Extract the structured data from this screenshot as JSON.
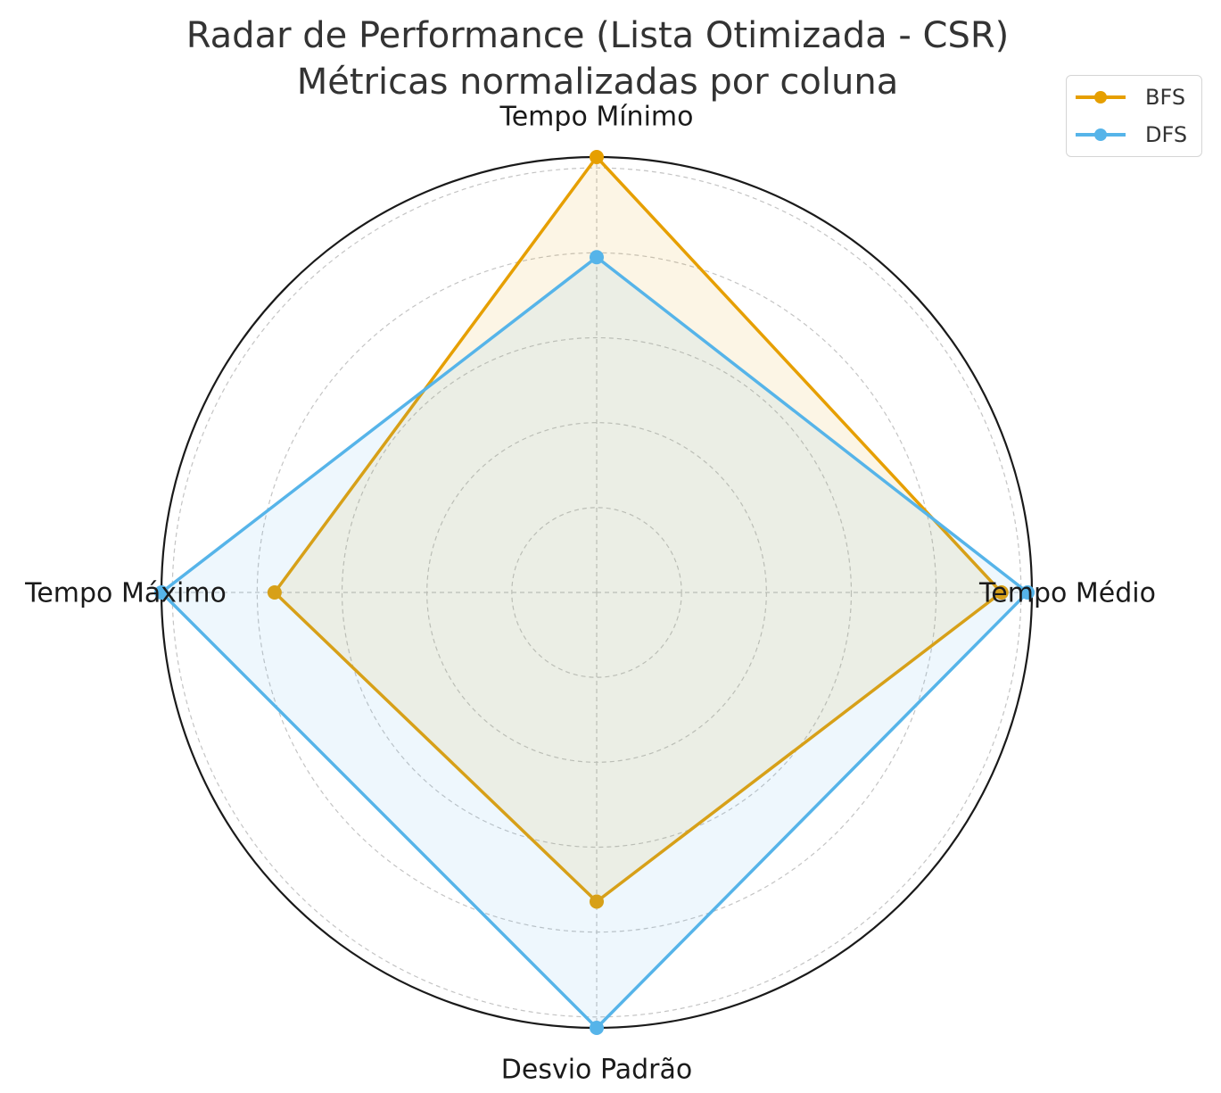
{
  "chart_data": {
    "type": "radar",
    "title": "Radar de Performance (Lista Otimizada - CSR)",
    "subtitle": "Métricas normalizadas por coluna",
    "axes": [
      "Tempo Mínimo",
      "Tempo Médio",
      "Desvio Padrão",
      "Tempo Máximo"
    ],
    "rlim": [
      0,
      1
    ],
    "grid": true,
    "legend_position": "top-right",
    "series": [
      {
        "name": "BFS",
        "color": "#E69F00",
        "values": [
          1.0,
          0.93,
          0.71,
          0.74
        ]
      },
      {
        "name": "DFS",
        "color": "#56B4E9",
        "values": [
          0.77,
          0.99,
          1.0,
          1.0
        ]
      }
    ]
  }
}
